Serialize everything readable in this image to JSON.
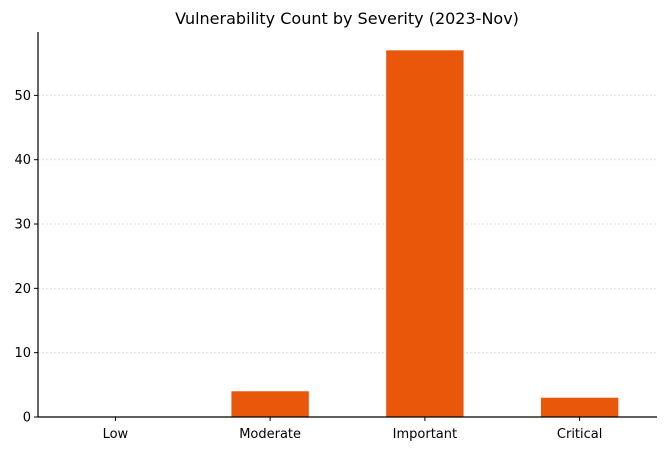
{
  "chart_data": {
    "type": "bar",
    "title": "Vulnerability Count by Severity (2023-Nov)",
    "xlabel": "",
    "ylabel": "",
    "categories": [
      "Low",
      "Moderate",
      "Important",
      "Critical"
    ],
    "values": [
      0,
      4,
      57,
      3
    ],
    "ylim": [
      0,
      59.85
    ],
    "yticks": [
      0,
      10,
      20,
      30,
      40,
      50
    ],
    "grid": "y-dotted",
    "legend": "none",
    "bar_color": "#e8570a"
  }
}
